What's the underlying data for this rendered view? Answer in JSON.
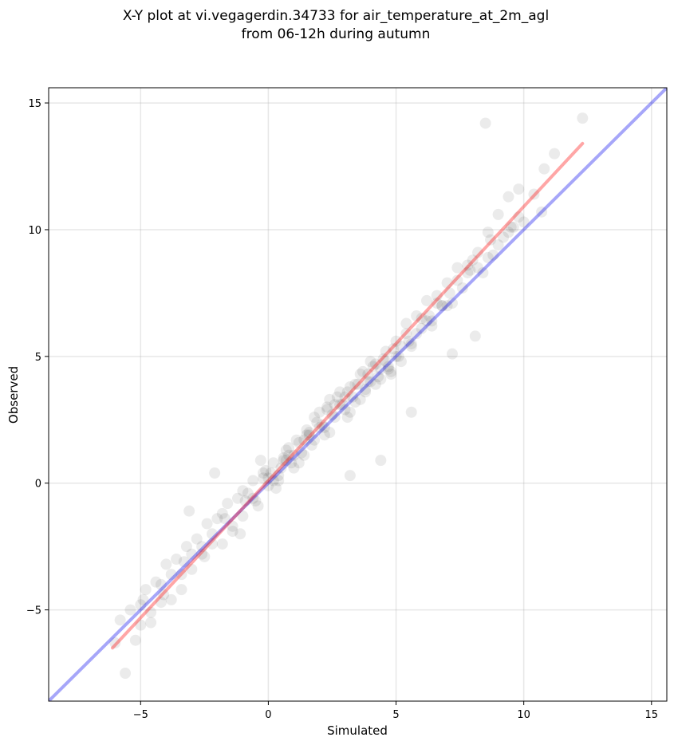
{
  "chart_data": {
    "type": "scatter",
    "title": "X-Y plot at vi.vegagerdin.34733 for air_temperature_at_2m_agl",
    "subtitle": "from 06-12h during autumn",
    "xlabel": "Simulated",
    "ylabel": "Observed",
    "xlim": [
      -8.6,
      15.6
    ],
    "ylim": [
      -8.6,
      15.6
    ],
    "x_ticks": [
      -5,
      0,
      5,
      10,
      15
    ],
    "y_ticks": [
      -5,
      0,
      5,
      10,
      15
    ],
    "x_tick_labels": [
      "−5",
      "0",
      "5",
      "10",
      "15"
    ],
    "y_tick_labels": [
      "−5",
      "0",
      "5",
      "10",
      "15"
    ],
    "grid": true,
    "point_color": "#000000",
    "point_alpha": 0.08,
    "identity_line": {
      "color": "#0000ee",
      "alpha": 0.35,
      "from": [
        -8.6,
        -8.6
      ],
      "to": [
        15.6,
        15.6
      ]
    },
    "regression_line": {
      "color": "#ff0000",
      "alpha": 0.35,
      "from": [
        -6.1,
        -6.5
      ],
      "to": [
        12.3,
        13.4
      ]
    },
    "points_x": [
      -6,
      -5.8,
      -5.6,
      -5.2,
      -5.0,
      -4.8,
      -4.6,
      -4.4,
      -4.2,
      -4.0,
      -3.8,
      -3.6,
      -3.4,
      -3.2,
      -3.0,
      -2.8,
      -2.6,
      -2.4,
      -2.2,
      -2.0,
      -1.8,
      -1.6,
      -1.4,
      -1.2,
      -1.0,
      -0.8,
      -0.6,
      -0.4,
      -0.2,
      0,
      0.2,
      0.4,
      0.6,
      0.8,
      1.0,
      1.2,
      1.4,
      1.6,
      1.8,
      2.0,
      2.2,
      2.4,
      2.6,
      2.8,
      3.0,
      3.2,
      3.4,
      3.6,
      3.8,
      4.0,
      4.2,
      4.4,
      4.6,
      4.8,
      5.0,
      5.2,
      5.4,
      5.6,
      5.8,
      6.0,
      6.2,
      6.4,
      6.6,
      6.8,
      7.0,
      7.2,
      7.4,
      7.6,
      7.8,
      8.0,
      8.2,
      8.4,
      8.6,
      8.8,
      9.0,
      9.2,
      9.4,
      9.6,
      9.8,
      10.0,
      10.4,
      10.8,
      11.2,
      12.3,
      -5.4,
      -5.0,
      -4.6,
      -4.2,
      -3.8,
      -3.4,
      -3.0,
      -2.6,
      -2.2,
      -1.8,
      -1.4,
      -1.0,
      -0.6,
      -0.2,
      0.2,
      0.6,
      1.0,
      1.4,
      1.8,
      2.2,
      2.6,
      3.0,
      3.4,
      3.8,
      4.2,
      4.6,
      5.0,
      5.4,
      5.8,
      6.2,
      6.6,
      7.0,
      7.4,
      7.8,
      8.2,
      8.6,
      9.0,
      9.4,
      9.8,
      -4.9,
      -4.1,
      -3.3,
      -2.5,
      -1.7,
      -0.9,
      -0.1,
      0.7,
      1.5,
      2.3,
      3.1,
      3.9,
      4.7,
      5.5,
      6.3,
      7.1,
      7.9,
      8.7,
      9.5,
      0.1,
      0.3,
      0.5,
      0.7,
      0.9,
      1.1,
      1.3,
      1.5,
      1.7,
      1.9,
      2.1,
      2.3,
      2.5,
      2.7,
      2.9,
      3.1,
      3.3,
      3.5,
      3.7,
      3.9,
      4.1,
      4.3,
      4.5,
      4.7,
      4.9,
      5.1,
      -0.3,
      -0.5,
      0.0,
      0.4,
      0.8,
      1.2,
      1.6,
      2.0,
      2.4,
      2.8,
      3.2,
      3.6,
      4.0,
      4.4,
      4.8,
      5.2,
      5.6,
      6.0,
      6.4,
      6.8,
      3.2,
      4.4,
      5.6,
      8.5,
      10.7,
      -1.1,
      -2.1,
      -3.1,
      7.2,
      8.1
    ],
    "points_y": [
      -6.3,
      -5.4,
      -7.5,
      -6.2,
      -4.8,
      -4.2,
      -5.5,
      -3.9,
      -4.7,
      -3.2,
      -4.6,
      -3.0,
      -4.2,
      -2.5,
      -3.4,
      -2.2,
      -2.8,
      -1.6,
      -2.0,
      -1.4,
      -2.4,
      -0.8,
      -1.9,
      -0.6,
      -1.3,
      -0.4,
      0.1,
      -0.9,
      0.2,
      -0.1,
      0.8,
      0.3,
      0.9,
      1.4,
      0.6,
      1.6,
      1.1,
      2.0,
      1.7,
      2.8,
      1.9,
      3.3,
      2.6,
      3.6,
      2.9,
      3.8,
      3.2,
      4.3,
      3.6,
      4.8,
      3.9,
      4.5,
      5.2,
      4.3,
      5.6,
      4.8,
      6.3,
      5.4,
      6.6,
      6.1,
      7.2,
      6.4,
      7.4,
      7.0,
      7.9,
      7.1,
      8.5,
      7.7,
      8.6,
      8.8,
      9.1,
      8.3,
      9.9,
      9.0,
      10.6,
      9.7,
      11.3,
      10.1,
      11.6,
      10.3,
      11.4,
      12.4,
      13.0,
      14.4,
      -5.0,
      -5.6,
      -5.1,
      -4.0,
      -3.6,
      -3.6,
      -2.8,
      -2.5,
      -2.4,
      -1.2,
      -1.7,
      -0.3,
      -0.6,
      0.4,
      0.1,
      1.0,
      1.1,
      1.7,
      2.6,
      2.2,
      3.1,
      3.4,
      3.9,
      3.7,
      4.7,
      4.8,
      5.0,
      5.9,
      5.9,
      6.4,
      7.1,
      7.0,
      8.0,
      8.3,
      8.5,
      8.9,
      9.4,
      9.9,
      10.5,
      -4.6,
      -4.4,
      -3.1,
      -2.9,
      -1.4,
      -0.7,
      0.5,
      0.9,
      1.9,
      2.9,
      2.6,
      4.3,
      4.6,
      5.6,
      6.6,
      7.5,
      8.4,
      9.6,
      10.1,
      0.4,
      -0.2,
      0.6,
      1.3,
      0.8,
      1.7,
      1.2,
      2.1,
      1.5,
      2.4,
      2.3,
      3.0,
      2.7,
      3.4,
      3.1,
      3.6,
      3.4,
      3.9,
      4.4,
      4.0,
      4.6,
      4.2,
      4.9,
      4.5,
      5.3,
      5.0,
      0.9,
      -0.7,
      0.2,
      0.1,
      1.1,
      0.8,
      1.9,
      2.2,
      2.0,
      3.1,
      2.8,
      3.3,
      4.0,
      4.1,
      4.4,
      5.4,
      5.5,
      6.5,
      6.2,
      7.0,
      0.3,
      0.9,
      2.8,
      14.2,
      10.7,
      -2.0,
      0.4,
      -1.1,
      5.1,
      5.8
    ]
  }
}
